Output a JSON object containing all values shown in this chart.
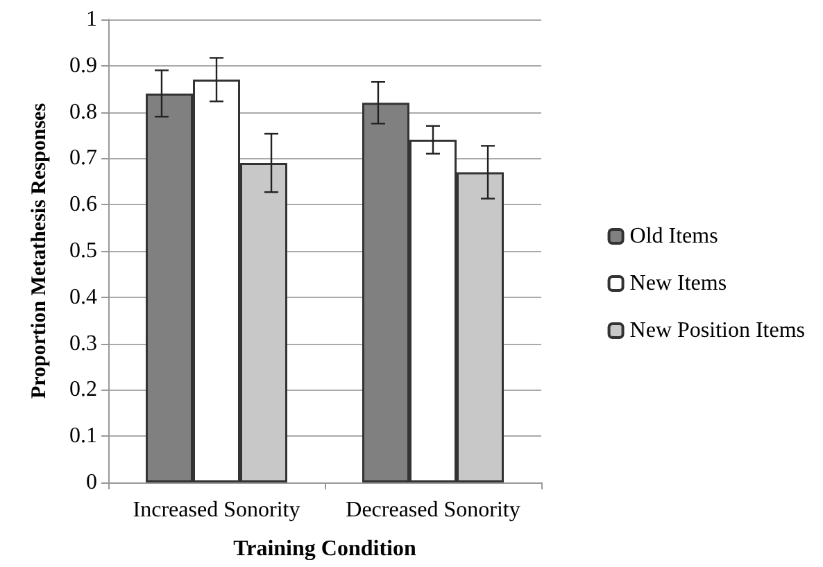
{
  "chart_data": {
    "type": "bar",
    "xlabel": "Training Condition",
    "ylabel": "Proportion Metathesis Responses",
    "categories": [
      "Increased Sonority",
      "Decreased Sonority"
    ],
    "series": [
      {
        "name": "Old Items",
        "color": "#808080",
        "values": [
          0.84,
          0.82
        ],
        "errors": [
          0.05,
          0.045
        ]
      },
      {
        "name": "New Items",
        "color": "#ffffff",
        "values": [
          0.87,
          0.74
        ],
        "errors": [
          0.047,
          0.03
        ]
      },
      {
        "name": "New Position Items",
        "color": "#c8c8c8",
        "values": [
          0.69,
          0.67
        ],
        "errors": [
          0.063,
          0.057
        ]
      }
    ],
    "ylim": [
      0,
      1
    ],
    "yticks": [
      0,
      0.1,
      0.2,
      0.3,
      0.4,
      0.5,
      0.6,
      0.7,
      0.8,
      0.9,
      1
    ],
    "grid": "y",
    "legend": "right"
  }
}
